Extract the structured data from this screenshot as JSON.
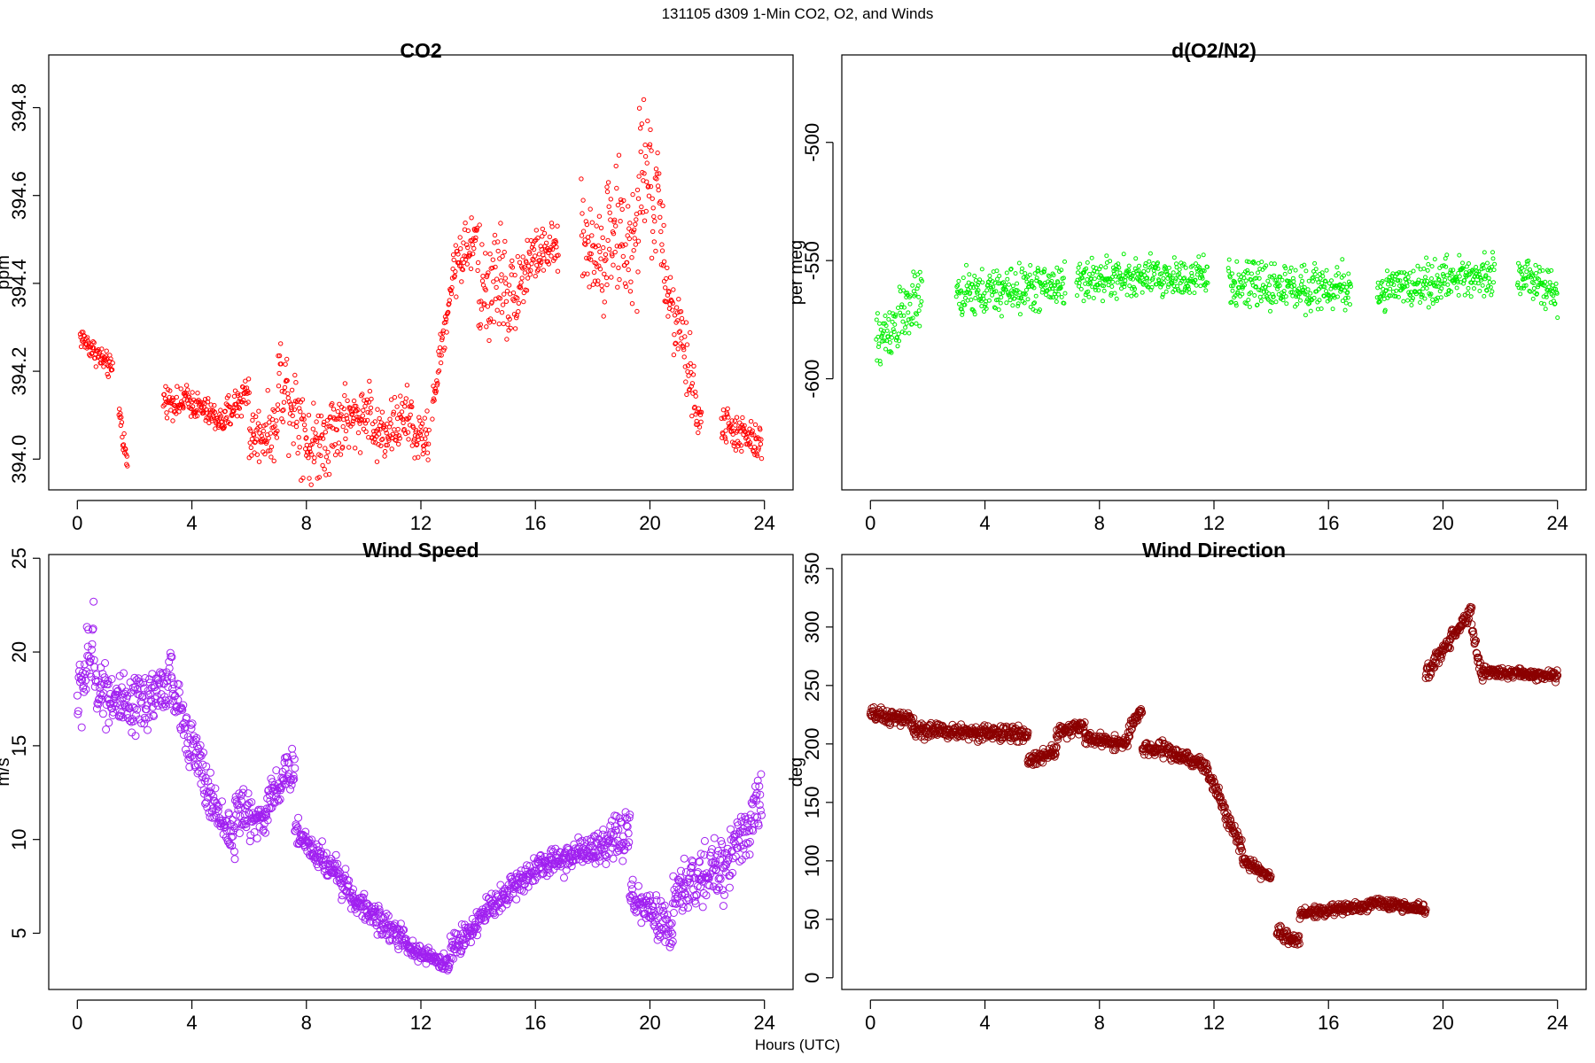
{
  "figure": {
    "title": "131105   d309   1-Min CO2, O2, and Winds",
    "xlabel": "Hours (UTC)"
  },
  "chart_data": [
    {
      "id": "co2",
      "type": "scatter",
      "title": "CO2",
      "xlabel": "",
      "ylabel": "ppm",
      "xlim": [
        -1,
        25
      ],
      "ylim": [
        393.93,
        394.92
      ],
      "xticks": [
        0,
        4,
        8,
        12,
        16,
        20,
        24
      ],
      "yticks": [
        394.0,
        394.2,
        394.4,
        394.6,
        394.8
      ],
      "ytick_labels": [
        "394.0",
        "394.2",
        "394.4",
        "394.6",
        "394.8"
      ],
      "ylabel_rotated": true,
      "color": "#ff0000",
      "marker_radius": 2.2,
      "segments": [
        {
          "start": 0.1,
          "end": 1.25,
          "from": 394.28,
          "to": 394.2,
          "noise": 0.025
        },
        {
          "start": 1.45,
          "end": 1.75,
          "from": 394.12,
          "to": 393.98,
          "noise": 0.03
        },
        {
          "start": 3.0,
          "end": 3.7,
          "from": 394.14,
          "to": 394.12,
          "noise": 0.03
        },
        {
          "start": 3.7,
          "end": 5.2,
          "from": 394.14,
          "to": 394.08,
          "noise": 0.03
        },
        {
          "start": 5.2,
          "end": 6.0,
          "from": 394.1,
          "to": 394.16,
          "noise": 0.04
        },
        {
          "start": 6.0,
          "end": 7.0,
          "from": 394.05,
          "to": 394.07,
          "noise": 0.06
        },
        {
          "start": 7.0,
          "end": 8.0,
          "from": 394.2,
          "to": 394.07,
          "noise": 0.1
        },
        {
          "start": 8.0,
          "end": 9.5,
          "from": 394.02,
          "to": 394.1,
          "noise": 0.08
        },
        {
          "start": 9.5,
          "end": 10.3,
          "from": 394.08,
          "to": 394.12,
          "noise": 0.06
        },
        {
          "start": 10.3,
          "end": 11.7,
          "from": 394.05,
          "to": 394.1,
          "noise": 0.06
        },
        {
          "start": 11.7,
          "end": 12.3,
          "from": 394.05,
          "to": 394.05,
          "noise": 0.05
        },
        {
          "start": 12.4,
          "end": 13.2,
          "from": 394.12,
          "to": 394.45,
          "noise": 0.04
        },
        {
          "start": 13.2,
          "end": 14.0,
          "from": 394.45,
          "to": 394.5,
          "noise": 0.07
        },
        {
          "start": 14.0,
          "end": 15.0,
          "from": 394.38,
          "to": 394.42,
          "noise": 0.12
        },
        {
          "start": 15.0,
          "end": 15.8,
          "from": 394.35,
          "to": 394.45,
          "noise": 0.08
        },
        {
          "start": 15.8,
          "end": 16.8,
          "from": 394.46,
          "to": 394.48,
          "noise": 0.05
        },
        {
          "start": 17.6,
          "end": 18.5,
          "from": 394.5,
          "to": 394.45,
          "noise": 0.1
        },
        {
          "start": 18.5,
          "end": 19.6,
          "from": 394.55,
          "to": 394.45,
          "noise": 0.14
        },
        {
          "start": 19.6,
          "end": 20.5,
          "from": 394.7,
          "to": 394.52,
          "noise": 0.14
        },
        {
          "start": 20.5,
          "end": 21.6,
          "from": 394.4,
          "to": 394.15,
          "noise": 0.08
        },
        {
          "start": 21.6,
          "end": 21.8,
          "from": 394.08,
          "to": 394.1,
          "noise": 0.03
        },
        {
          "start": 22.5,
          "end": 23.9,
          "from": 394.08,
          "to": 394.03,
          "noise": 0.04
        }
      ]
    },
    {
      "id": "o2",
      "type": "scatter",
      "title": "d(O2/N2)",
      "xlabel": "",
      "ylabel": "per meg",
      "xlim": [
        -1,
        25
      ],
      "ylim": [
        -647,
        -463
      ],
      "xticks": [
        0,
        4,
        8,
        12,
        16,
        20,
        24
      ],
      "yticks": [
        -600,
        -550,
        -500
      ],
      "ytick_labels": [
        "-600",
        "-550",
        "-500"
      ],
      "ylabel_rotated": true,
      "color": "#00ee00",
      "marker_radius": 2.0,
      "segments": [
        {
          "start": 0.2,
          "end": 1.8,
          "from": -585,
          "to": -565,
          "noise": 12
        },
        {
          "start": 3.0,
          "end": 6.8,
          "from": -565,
          "to": -560,
          "noise": 9
        },
        {
          "start": 7.2,
          "end": 11.8,
          "from": -558,
          "to": -557,
          "noise": 8
        },
        {
          "start": 12.5,
          "end": 16.8,
          "from": -560,
          "to": -562,
          "noise": 9
        },
        {
          "start": 17.7,
          "end": 21.8,
          "from": -563,
          "to": -555,
          "noise": 8
        },
        {
          "start": 22.6,
          "end": 24.0,
          "from": -555,
          "to": -565,
          "noise": 7
        }
      ]
    },
    {
      "id": "wind_speed",
      "type": "scatter",
      "title": "Wind Speed",
      "xlabel": "",
      "ylabel": "m/s",
      "xlim": [
        -1,
        25
      ],
      "ylim": [
        2.0,
        25.2
      ],
      "xticks": [
        0,
        4,
        8,
        12,
        16,
        20,
        24
      ],
      "yticks": [
        5,
        10,
        15,
        20,
        25
      ],
      "ytick_labels": [
        "5",
        "10",
        "15",
        "20",
        "25"
      ],
      "ylabel_rotated": true,
      "color": "#a020f0",
      "marker_radius": 4.0,
      "segments": [
        {
          "start": 0.0,
          "end": 0.6,
          "from": 17.5,
          "to": 20.5,
          "noise": 2.0
        },
        {
          "start": 0.6,
          "end": 2.0,
          "from": 18.5,
          "to": 16.5,
          "noise": 1.5
        },
        {
          "start": 2.0,
          "end": 3.3,
          "from": 17.0,
          "to": 18.5,
          "noise": 1.5
        },
        {
          "start": 3.3,
          "end": 4.5,
          "from": 18.0,
          "to": 13.0,
          "noise": 1.2
        },
        {
          "start": 4.5,
          "end": 5.5,
          "from": 12.5,
          "to": 10.0,
          "noise": 1.2
        },
        {
          "start": 5.5,
          "end": 6.6,
          "from": 11.5,
          "to": 11.0,
          "noise": 1.2
        },
        {
          "start": 6.6,
          "end": 7.6,
          "from": 12.0,
          "to": 14.0,
          "noise": 1.0
        },
        {
          "start": 7.6,
          "end": 9.5,
          "from": 10.5,
          "to": 7.5,
          "noise": 0.8
        },
        {
          "start": 9.5,
          "end": 11.5,
          "from": 7.0,
          "to": 4.5,
          "noise": 0.6
        },
        {
          "start": 11.5,
          "end": 13.0,
          "from": 4.2,
          "to": 3.3,
          "noise": 0.4
        },
        {
          "start": 13.0,
          "end": 14.5,
          "from": 4.0,
          "to": 6.5,
          "noise": 0.7
        },
        {
          "start": 14.5,
          "end": 16.0,
          "from": 6.5,
          "to": 8.5,
          "noise": 0.7
        },
        {
          "start": 16.0,
          "end": 18.0,
          "from": 8.5,
          "to": 9.5,
          "noise": 0.7
        },
        {
          "start": 18.0,
          "end": 19.3,
          "from": 9.0,
          "to": 10.5,
          "noise": 1.2
        },
        {
          "start": 19.3,
          "end": 20.8,
          "from": 7.0,
          "to": 5.0,
          "noise": 1.0
        },
        {
          "start": 20.8,
          "end": 22.3,
          "from": 7.0,
          "to": 8.5,
          "noise": 1.5
        },
        {
          "start": 22.3,
          "end": 23.9,
          "from": 8.0,
          "to": 12.0,
          "noise": 1.5
        }
      ]
    },
    {
      "id": "wind_direction",
      "type": "scatter",
      "title": "Wind Direction",
      "xlabel": "",
      "ylabel": "deg",
      "xlim": [
        -1,
        25
      ],
      "ylim": [
        -10,
        362
      ],
      "xticks": [
        0,
        4,
        8,
        12,
        16,
        20,
        24
      ],
      "yticks": [
        0,
        50,
        100,
        150,
        200,
        250,
        300,
        350
      ],
      "ytick_labels": [
        "0",
        "50",
        "100",
        "150",
        "200",
        "250",
        "300",
        "350"
      ],
      "ylabel_rotated": false,
      "color": "#8b0000",
      "marker_radius": 4.0,
      "segments": [
        {
          "start": 0.0,
          "end": 1.5,
          "from": 225,
          "to": 220,
          "noise": 6
        },
        {
          "start": 1.5,
          "end": 5.5,
          "from": 212,
          "to": 208,
          "noise": 6
        },
        {
          "start": 5.5,
          "end": 6.5,
          "from": 185,
          "to": 195,
          "noise": 5
        },
        {
          "start": 6.5,
          "end": 7.5,
          "from": 210,
          "to": 215,
          "noise": 5
        },
        {
          "start": 7.5,
          "end": 9.0,
          "from": 205,
          "to": 200,
          "noise": 5
        },
        {
          "start": 9.0,
          "end": 9.5,
          "from": 210,
          "to": 230,
          "noise": 5
        },
        {
          "start": 9.5,
          "end": 10.5,
          "from": 195,
          "to": 195,
          "noise": 6
        },
        {
          "start": 10.5,
          "end": 11.8,
          "from": 192,
          "to": 180,
          "noise": 6
        },
        {
          "start": 11.8,
          "end": 13.0,
          "from": 175,
          "to": 110,
          "noise": 6
        },
        {
          "start": 13.0,
          "end": 14.0,
          "from": 100,
          "to": 85,
          "noise": 4
        },
        {
          "start": 14.2,
          "end": 15.0,
          "from": 40,
          "to": 30,
          "noise": 5
        },
        {
          "start": 15.0,
          "end": 17.5,
          "from": 55,
          "to": 62,
          "noise": 4
        },
        {
          "start": 17.5,
          "end": 19.4,
          "from": 65,
          "to": 58,
          "noise": 4
        },
        {
          "start": 19.4,
          "end": 21.0,
          "from": 260,
          "to": 315,
          "noise": 6
        },
        {
          "start": 21.0,
          "end": 21.4,
          "from": 300,
          "to": 255,
          "noise": 6
        },
        {
          "start": 21.4,
          "end": 24.0,
          "from": 262,
          "to": 258,
          "noise": 4
        }
      ]
    }
  ]
}
